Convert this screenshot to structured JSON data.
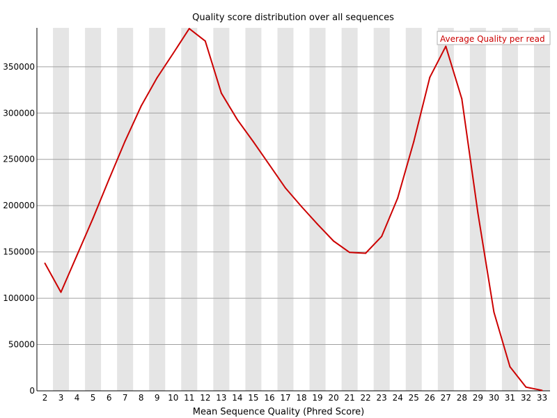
{
  "chart_data": {
    "type": "line",
    "title": "Quality score distribution over all sequences",
    "xlabel": "Mean Sequence Quality (Phred Score)",
    "ylabel": "",
    "categories": [
      "2",
      "3",
      "4",
      "5",
      "6",
      "7",
      "8",
      "9",
      "10",
      "11",
      "12",
      "13",
      "14",
      "15",
      "16",
      "17",
      "18",
      "19",
      "20",
      "21",
      "22",
      "23",
      "24",
      "25",
      "26",
      "27",
      "28",
      "29",
      "30",
      "31",
      "32",
      "33"
    ],
    "ylim": [
      0,
      392000
    ],
    "yticks": [
      "0",
      "50000",
      "100000",
      "150000",
      "200000",
      "250000",
      "300000",
      "350000"
    ],
    "series": [
      {
        "name": "Average Quality per read",
        "color": "#cc0000",
        "values": [
          137800,
          106500,
          146500,
          186400,
          228500,
          269800,
          307500,
          338300,
          364500,
          391200,
          377800,
          321500,
          292800,
          269000,
          244000,
          219000,
          199000,
          180000,
          161800,
          149500,
          148600,
          166800,
          208300,
          268900,
          338500,
          372100,
          315300,
          192000,
          85000,
          26000,
          4000,
          500
        ]
      }
    ],
    "grid": true,
    "legend_position": "top-right",
    "colors": {
      "band": "#e5e5e5",
      "gridline": "#a0a0a0",
      "axis": "#000000"
    }
  }
}
